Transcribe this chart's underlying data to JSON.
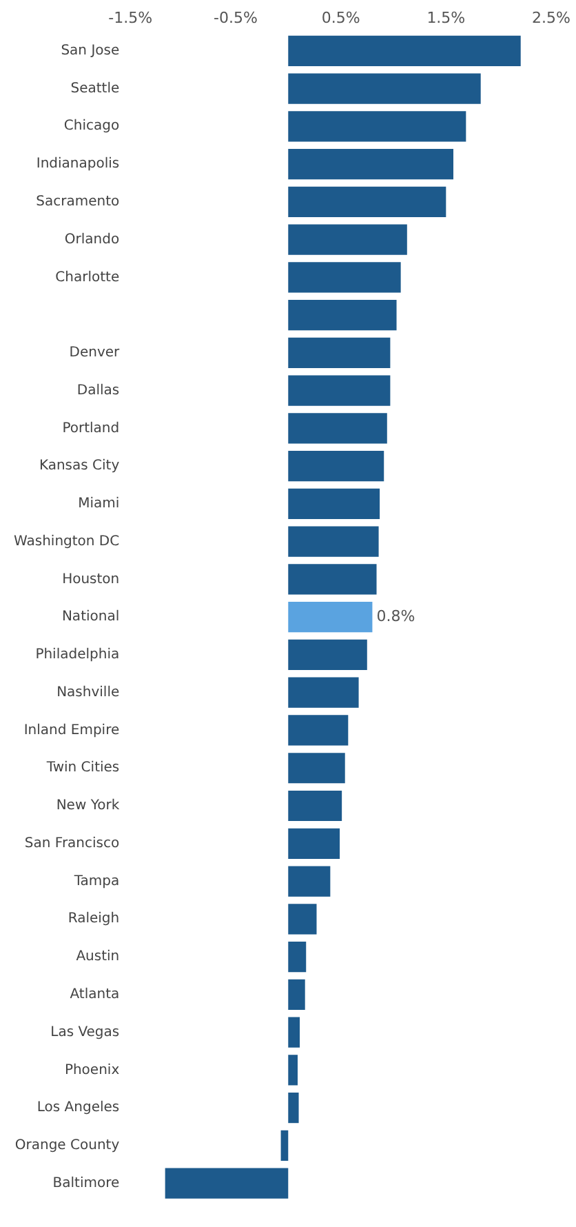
{
  "chart_data": {
    "type": "bar",
    "orientation": "horizontal",
    "categories": [
      "San Jose",
      "Seattle",
      "Chicago",
      "Indianapolis",
      "Sacramento",
      "Orlando",
      "Charlotte",
      null,
      "Denver",
      "Dallas",
      "Portland",
      "Kansas City",
      "Miami",
      "Washington DC",
      "Houston",
      "National",
      "Philadelphia",
      "Nashville",
      "Inland Empire",
      "Twin Cities",
      "New York",
      "San Francisco",
      "Tampa",
      "Raleigh",
      "Austin",
      "Atlanta",
      "Las Vegas",
      "Phoenix",
      "Los Angeles",
      "Orange County",
      "Baltimore"
    ],
    "values": [
      2.21,
      1.83,
      1.69,
      1.57,
      1.5,
      1.13,
      1.07,
      1.03,
      0.97,
      0.97,
      0.94,
      0.91,
      0.87,
      0.86,
      0.84,
      0.8,
      0.75,
      0.67,
      0.57,
      0.54,
      0.51,
      0.49,
      0.4,
      0.27,
      0.17,
      0.16,
      0.11,
      0.09,
      0.1,
      -0.07,
      -1.17
    ],
    "colors": [
      "#1d5a8c",
      "#1d5a8c",
      "#1d5a8c",
      "#1d5a8c",
      "#1d5a8c",
      "#1d5a8c",
      "#1d5a8c",
      "#1d5a8c",
      "#1d5a8c",
      "#1d5a8c",
      "#1d5a8c",
      "#1d5a8c",
      "#1d5a8c",
      "#1d5a8c",
      "#1d5a8c",
      "#5aa3e0",
      "#1d5a8c",
      "#1d5a8c",
      "#1d5a8c",
      "#1d5a8c",
      "#1d5a8c",
      "#1d5a8c",
      "#1d5a8c",
      "#1d5a8c",
      "#1d5a8c",
      "#1d5a8c",
      "#1d5a8c",
      "#1d5a8c",
      "#1d5a8c",
      "#1d5a8c",
      "#1d5a8c"
    ],
    "value_labels": [
      null,
      null,
      null,
      null,
      null,
      null,
      null,
      null,
      null,
      null,
      null,
      null,
      null,
      null,
      null,
      "0.8%",
      null,
      null,
      null,
      null,
      null,
      null,
      null,
      null,
      null,
      null,
      null,
      null,
      null,
      null,
      null
    ],
    "xlim": [
      -1.5,
      2.5
    ],
    "xticks": [
      {
        "value": -1.5,
        "label": "-1.5%"
      },
      {
        "value": -0.5,
        "label": "-0.5%"
      },
      {
        "value": 0.5,
        "label": "0.5%"
      },
      {
        "value": 1.5,
        "label": "1.5%"
      },
      {
        "value": 2.5,
        "label": "2.5%"
      }
    ],
    "grid": false,
    "legend": false
  }
}
